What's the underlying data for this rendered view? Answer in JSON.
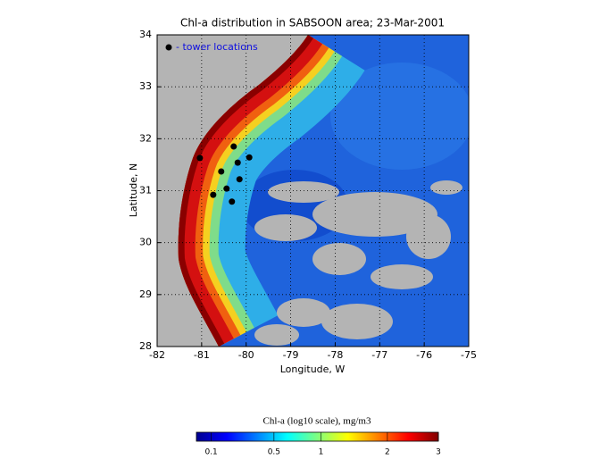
{
  "chart_data": {
    "type": "scatter",
    "title": "Chl-a distribution in SABSOON area; 23-Mar-2001",
    "xlabel": "Longitude, W",
    "ylabel": "Latitude, N",
    "xlim": [
      -82,
      -75
    ],
    "ylim": [
      28,
      34
    ],
    "xticks": [
      -82,
      -81,
      -80,
      -79,
      -78,
      -77,
      -76,
      -75
    ],
    "yticks": [
      28,
      29,
      30,
      31,
      32,
      33,
      34
    ],
    "grid": true,
    "legend": "upper left",
    "series": [
      {
        "name": "- tower locations",
        "color": "#000000",
        "x": [
          -81.04,
          -80.28,
          -79.93,
          -80.19,
          -80.56,
          -80.15,
          -80.44,
          -80.74,
          -80.32
        ],
        "values": [
          31.63,
          31.85,
          31.64,
          31.54,
          31.37,
          31.22,
          31.04,
          30.92,
          30.79
        ]
      }
    ],
    "colorbar": {
      "label": "Chl-a (log10 scale), mg/m3",
      "clim": [
        0.05,
        3
      ],
      "scale": "sqrt",
      "ticks": [
        0.1,
        0.5,
        1,
        2,
        3
      ]
    }
  }
}
